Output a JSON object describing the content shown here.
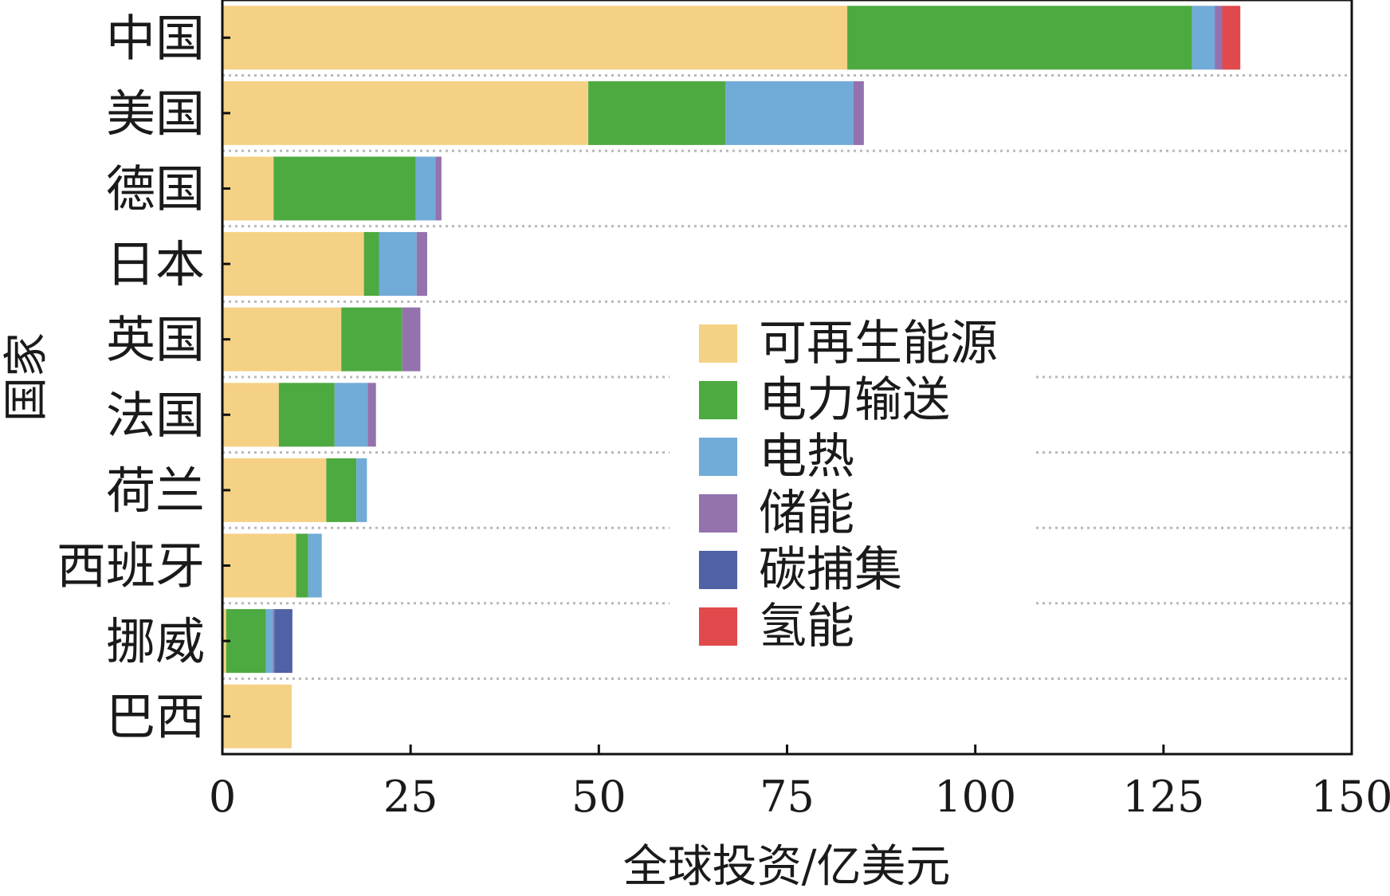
{
  "chart_data": {
    "type": "bar",
    "orientation": "horizontal",
    "stacked": true,
    "xlabel": "全球投资/亿美元",
    "ylabel": "国家",
    "xlim": [
      0,
      150
    ],
    "xticks": [
      0,
      25,
      50,
      75,
      100,
      125,
      150
    ],
    "grid": "horizontal dotted",
    "legend_position": "center",
    "categories": [
      "中国",
      "美国",
      "德国",
      "日本",
      "英国",
      "法国",
      "荷兰",
      "西班牙",
      "挪威",
      "巴西"
    ],
    "series": [
      {
        "name": "可再生能源",
        "color": "#F5D185",
        "values": [
          83,
          48.6,
          6.8,
          18.8,
          15.8,
          7.5,
          13.8,
          9.8,
          0.5,
          9.2
        ]
      },
      {
        "name": "电力输送",
        "color": "#4DAA40",
        "values": [
          45.8,
          18.2,
          18.9,
          2.0,
          8.1,
          7.4,
          4.0,
          1.6,
          5.3,
          0
        ]
      },
      {
        "name": "电热",
        "color": "#71ABD8",
        "values": [
          3.0,
          17.0,
          2.6,
          5.0,
          0,
          4.4,
          1.4,
          1.8,
          0.9,
          0
        ]
      },
      {
        "name": "储能",
        "color": "#9472AE",
        "values": [
          1.0,
          1.4,
          0.8,
          1.4,
          2.4,
          1.1,
          0,
          0,
          0.2,
          0
        ]
      },
      {
        "name": "碳捕集",
        "color": "#5062A5",
        "values": [
          0,
          0,
          0,
          0,
          0,
          0,
          0,
          0,
          2.4,
          0
        ]
      },
      {
        "name": "氢能",
        "color": "#E04A4C",
        "values": [
          2.4,
          0,
          0,
          0,
          0,
          0,
          0,
          0,
          0,
          0
        ]
      }
    ]
  }
}
